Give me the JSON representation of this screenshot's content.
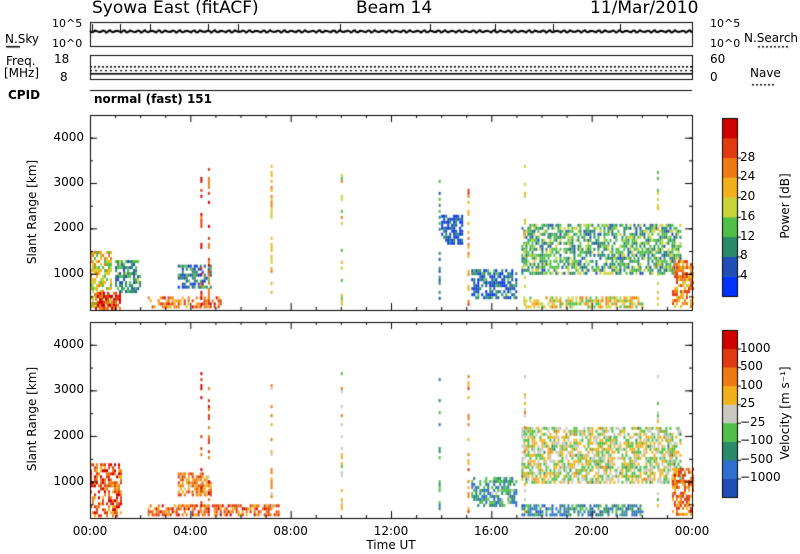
{
  "header": {
    "title": "Syowa East (fitACF)",
    "beam": "Beam 14",
    "date": "11/Mar/2010"
  },
  "top_panels": {
    "nsky_label": "N.Sky",
    "nsky_ticks": [
      "10^5",
      "10^0"
    ],
    "nsearch_label": "N.Search",
    "nsearch_ticks": [
      "10^5",
      "10^0"
    ],
    "freq_label": "Freq.",
    "freq_unit": "[MHz]",
    "freq_ticks": [
      "18",
      "8"
    ],
    "nave_label": "Nave",
    "nave_ticks": [
      "60",
      "0"
    ],
    "cpid_label": "CPID",
    "cpid_value": "normal (fast) 151"
  },
  "chart_data": [
    {
      "type": "heatmap",
      "title": "",
      "xlabel": "Time UT",
      "ylabel": "Slant Range [km]",
      "x_ticks": [
        "00:00",
        "04:00",
        "08:00",
        "12:00",
        "16:00",
        "20:00",
        "00:00"
      ],
      "y_ticks": [
        "1000",
        "2000",
        "3000",
        "4000"
      ],
      "xlim": [
        0,
        24
      ],
      "ylim": [
        200,
        4500
      ],
      "colorbar": {
        "label": "Power [dB]",
        "ticks": [
          "4",
          "8",
          "12",
          "16",
          "20",
          "24",
          "28"
        ],
        "colors": [
          "#0033ff",
          "#1f4fb5",
          "#2c8a6a",
          "#4fbf47",
          "#c8d43a",
          "#f2b11c",
          "#f07a12",
          "#e03a10",
          "#d10000"
        ]
      },
      "regions": [
        {
          "t0": 0.0,
          "t1": 0.8,
          "r0": 300,
          "r1": 1500,
          "level": 0.55
        },
        {
          "t0": 0.2,
          "t1": 1.2,
          "r0": 250,
          "r1": 600,
          "level": 0.85
        },
        {
          "t0": 1.0,
          "t1": 2.0,
          "r0": 600,
          "r1": 1300,
          "level": 0.3
        },
        {
          "t0": 2.3,
          "t1": 5.2,
          "r0": 250,
          "r1": 500,
          "level": 0.75
        },
        {
          "t0": 3.5,
          "t1": 4.8,
          "r0": 700,
          "r1": 1200,
          "level": 0.25
        },
        {
          "t0": 14.0,
          "t1": 14.8,
          "r0": 1700,
          "r1": 2300,
          "level": 0.15
        },
        {
          "t0": 15.2,
          "t1": 17.0,
          "r0": 450,
          "r1": 1100,
          "level": 0.2
        },
        {
          "t0": 17.2,
          "t1": 23.5,
          "r0": 1000,
          "r1": 2100,
          "level": 0.35
        },
        {
          "t0": 17.2,
          "t1": 22.0,
          "r0": 280,
          "r1": 500,
          "level": 0.55
        },
        {
          "t0": 23.2,
          "t1": 24.0,
          "r0": 250,
          "r1": 1300,
          "level": 0.7
        }
      ]
    },
    {
      "type": "heatmap",
      "title": "",
      "xlabel": "Time UT",
      "ylabel": "Slant Range [km]",
      "x_ticks": [
        "00:00",
        "04:00",
        "08:00",
        "12:00",
        "16:00",
        "20:00",
        "00:00"
      ],
      "y_ticks": [
        "1000",
        "2000",
        "3000",
        "4000"
      ],
      "xlim": [
        0,
        24
      ],
      "ylim": [
        200,
        4500
      ],
      "colorbar": {
        "label": "Velocity [m s⁻¹]",
        "ticks": [
          "1000",
          "500",
          "100",
          "25",
          "−25",
          "−100",
          "−500",
          "−1000"
        ],
        "colors": [
          "#1f4fb5",
          "#2f6fd0",
          "#2c8a6a",
          "#4fbf47",
          "#c8c8c0",
          "#f2b11c",
          "#f07a12",
          "#e03a10",
          "#d10000"
        ]
      },
      "regions": [
        {
          "t0": 0.0,
          "t1": 1.2,
          "r0": 250,
          "r1": 1400,
          "level": 0.8
        },
        {
          "t0": 2.3,
          "t1": 7.5,
          "r0": 250,
          "r1": 500,
          "level": 0.75
        },
        {
          "t0": 3.5,
          "t1": 4.8,
          "r0": 700,
          "r1": 1200,
          "level": 0.7
        },
        {
          "t0": 15.2,
          "t1": 17.0,
          "r0": 450,
          "r1": 1100,
          "level": 0.3
        },
        {
          "t0": 17.2,
          "t1": 23.5,
          "r0": 1000,
          "r1": 2200,
          "level": 0.5
        },
        {
          "t0": 17.2,
          "t1": 22.0,
          "r0": 280,
          "r1": 500,
          "level": 0.25
        },
        {
          "t0": 23.2,
          "t1": 24.0,
          "r0": 250,
          "r1": 1300,
          "level": 0.75
        }
      ]
    }
  ]
}
